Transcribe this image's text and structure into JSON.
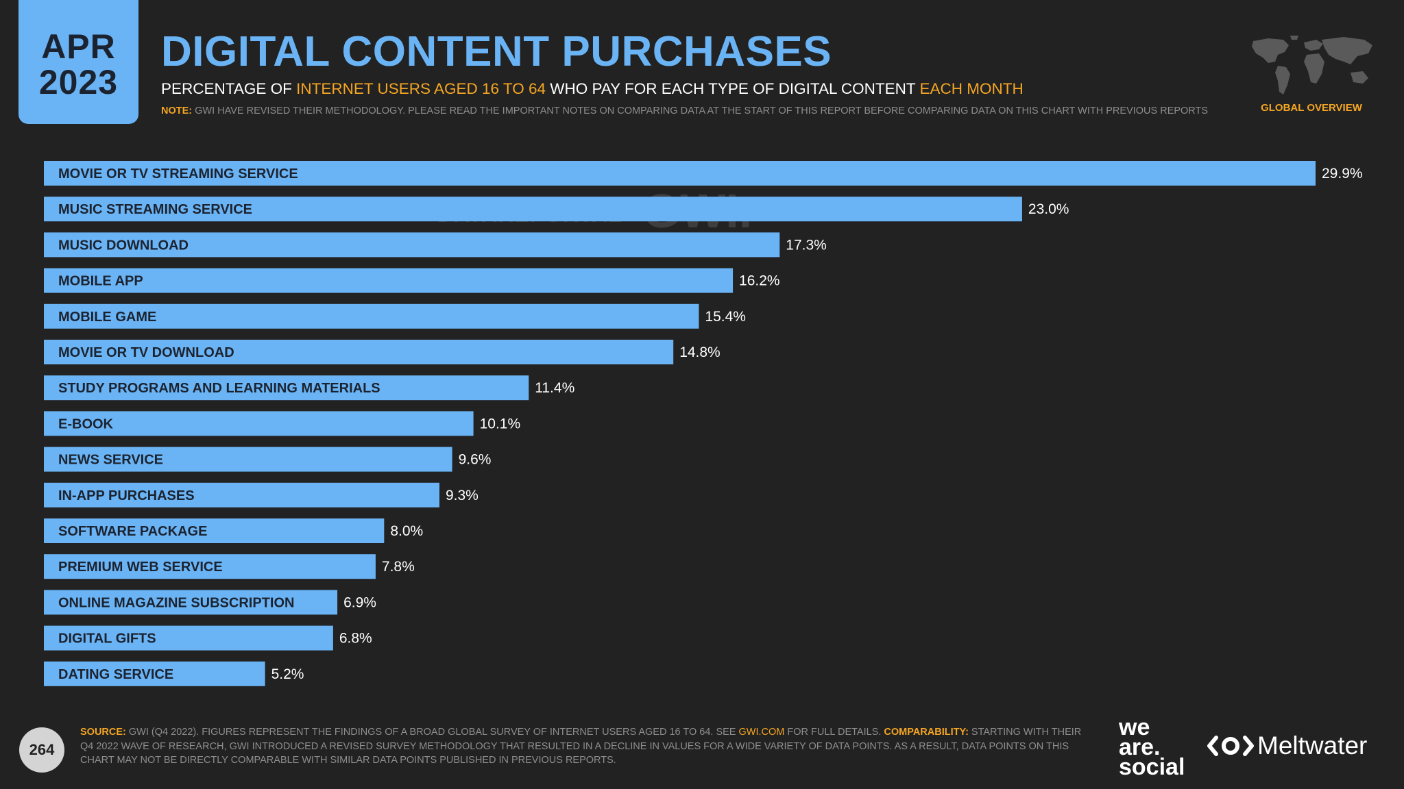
{
  "header": {
    "month": "APR",
    "year": "2023",
    "title": "DIGITAL CONTENT PURCHASES",
    "subtitle_parts": {
      "a": "PERCENTAGE OF ",
      "b": "INTERNET USERS AGED 16 TO 64",
      "c": " WHO PAY FOR EACH TYPE OF DIGITAL CONTENT ",
      "d": "EACH MONTH"
    },
    "note_label": "NOTE:",
    "note_text": " GWI HAVE REVISED THEIR METHODOLOGY. PLEASE READ THE IMPORTANT NOTES ON COMPARING DATA AT THE START OF THIS REPORT BEFORE COMPARING DATA ON THIS CHART WITH PREVIOUS REPORTS",
    "region_label": "GLOBAL OVERVIEW",
    "map_icon": "world-map-icon"
  },
  "watermark": {
    "datareportal": "DATAREPORTAL",
    "gwi": "GWI."
  },
  "colors": {
    "background": "#222222",
    "accent": "#6ab4f5",
    "highlight": "#f5a623"
  },
  "chart_data": {
    "type": "bar",
    "orientation": "horizontal",
    "categories": [
      "MOVIE OR TV STREAMING SERVICE",
      "MUSIC STREAMING SERVICE",
      "MUSIC DOWNLOAD",
      "MOBILE APP",
      "MOBILE GAME",
      "MOVIE OR TV DOWNLOAD",
      "STUDY PROGRAMS AND LEARNING MATERIALS",
      "E-BOOK",
      "NEWS SERVICE",
      "IN-APP PURCHASES",
      "SOFTWARE PACKAGE",
      "PREMIUM WEB SERVICE",
      "ONLINE MAGAZINE SUBSCRIPTION",
      "DIGITAL GIFTS",
      "DATING SERVICE"
    ],
    "values": [
      29.9,
      23.0,
      17.3,
      16.2,
      15.4,
      14.8,
      11.4,
      10.1,
      9.6,
      9.3,
      8.0,
      7.8,
      6.9,
      6.8,
      5.2
    ],
    "value_labels": [
      "29.9%",
      "23.0%",
      "17.3%",
      "16.2%",
      "15.4%",
      "14.8%",
      "11.4%",
      "10.1%",
      "9.6%",
      "9.3%",
      "8.0%",
      "7.8%",
      "6.9%",
      "6.8%",
      "5.2%"
    ],
    "unit": "%",
    "bar_color": "#6ab4f5",
    "grid": false,
    "legend": false
  },
  "footer": {
    "page_number": "264",
    "source_label": "SOURCE:",
    "source_text": " GWI (Q4 2022). FIGURES REPRESENT THE FINDINGS OF A BROAD GLOBAL SURVEY OF INTERNET USERS AGED 16 TO 64. SEE ",
    "source_link": "GWI.COM",
    "source_text_2": " FOR FULL DETAILS. ",
    "comparability_label": "COMPARABILITY:",
    "comparability_text": " STARTING WITH THEIR Q4 2022 WAVE OF RESEARCH, GWI INTRODUCED A REVISED SURVEY METHODOLOGY THAT RESULTED IN A DECLINE IN VALUES FOR A WIDE VARIETY OF DATA POINTS. AS A RESULT, DATA POINTS ON THIS CHART MAY NOT BE DIRECTLY COMPARABLE WITH SIMILAR DATA POINTS PUBLISHED IN PREVIOUS REPORTS."
  },
  "logos": {
    "we": "we",
    "are": "are.",
    "social": "social",
    "meltwater": "Meltwater",
    "meltwater_icon": "meltwater-logo-icon"
  }
}
